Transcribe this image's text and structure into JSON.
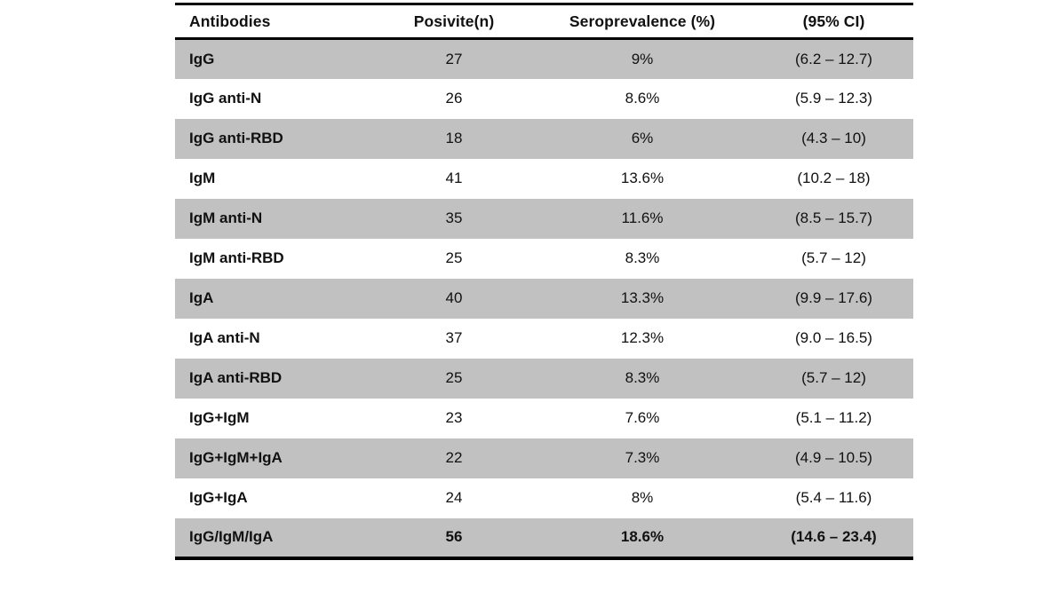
{
  "colors": {
    "row_shade": "#c1c1c1",
    "border": "#000000",
    "background": "#ffffff",
    "text": "#111111"
  },
  "table": {
    "columns": [
      "Antibodies",
      "Posivite(n)",
      "Seroprevalence (%)",
      "(95% CI)"
    ],
    "rows": [
      [
        "IgG",
        "27",
        "9%",
        "(6.2 – 12.7)"
      ],
      [
        "IgG anti-N",
        "26",
        "8.6%",
        "(5.9 – 12.3)"
      ],
      [
        "IgG anti-RBD",
        "18",
        "6%",
        "(4.3 – 10)"
      ],
      [
        "IgM",
        "41",
        "13.6%",
        "(10.2 – 18)"
      ],
      [
        "IgM anti-N",
        "35",
        "11.6%",
        "(8.5 – 15.7)"
      ],
      [
        "IgM anti-RBD",
        "25",
        "8.3%",
        "(5.7 – 12)"
      ],
      [
        "IgA",
        "40",
        "13.3%",
        "(9.9 – 17.6)"
      ],
      [
        "IgA anti-N",
        "37",
        "12.3%",
        "(9.0 – 16.5)"
      ],
      [
        "IgA anti-RBD",
        "25",
        "8.3%",
        "(5.7 – 12)"
      ],
      [
        "IgG+IgM",
        "23",
        "7.6%",
        "(5.1 – 11.2)"
      ],
      [
        "IgG+IgM+IgA",
        "22",
        "7.3%",
        "(4.9 – 10.5)"
      ],
      [
        "IgG+IgA",
        "24",
        "8%",
        "(5.4 – 11.6)"
      ],
      [
        "IgG/IgM/IgA",
        "56",
        "18.6%",
        "(14.6 – 23.4)"
      ]
    ]
  },
  "chart_data": {
    "type": "table",
    "title": "",
    "columns": [
      "Antibodies",
      "Posivite(n)",
      "Seroprevalence (%)",
      "(95% CI)"
    ],
    "categories": [
      "IgG",
      "IgG anti-N",
      "IgG anti-RBD",
      "IgM",
      "IgM anti-N",
      "IgM anti-RBD",
      "IgA",
      "IgA anti-N",
      "IgA anti-RBD",
      "IgG+IgM",
      "IgG+IgM+IgA",
      "IgG+IgA",
      "IgG/IgM/IgA"
    ],
    "series": [
      {
        "name": "Positive (n)",
        "values": [
          27,
          26,
          18,
          41,
          35,
          25,
          40,
          37,
          25,
          23,
          22,
          24,
          56
        ]
      },
      {
        "name": "Seroprevalence (%)",
        "values": [
          9,
          8.6,
          6,
          13.6,
          11.6,
          8.3,
          13.3,
          12.3,
          8.3,
          7.6,
          7.3,
          8,
          18.6
        ]
      },
      {
        "name": "95% CI low",
        "values": [
          6.2,
          5.9,
          4.3,
          10.2,
          8.5,
          5.7,
          9.9,
          9.0,
          5.7,
          5.1,
          4.9,
          5.4,
          14.6
        ]
      },
      {
        "name": "95% CI high",
        "values": [
          12.7,
          12.3,
          10,
          18,
          15.7,
          12,
          17.6,
          16.5,
          12,
          11.2,
          10.5,
          11.6,
          23.4
        ]
      }
    ]
  }
}
